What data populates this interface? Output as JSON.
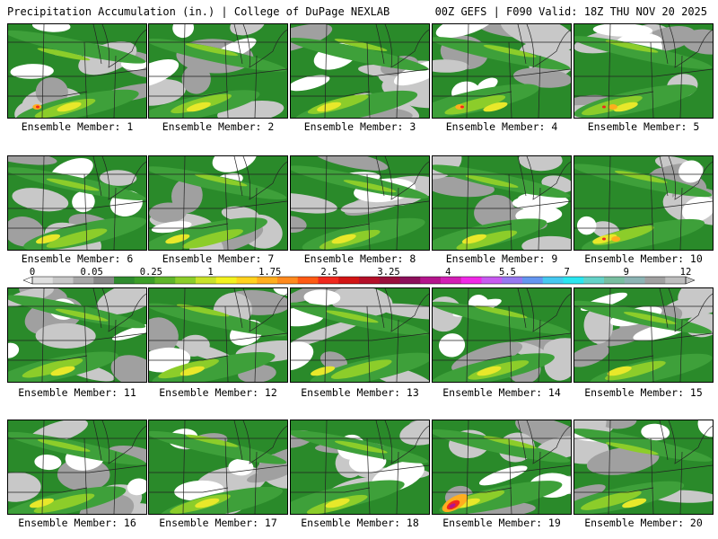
{
  "header": {
    "left": "Precipitation Accumulation (in.) | College of DuPage NEXLAB",
    "right": "00Z GEFS | F090 Valid: 18Z THU NOV 20 2025"
  },
  "panels": [
    {
      "label": "Ensemble Member: 1"
    },
    {
      "label": "Ensemble Member: 2"
    },
    {
      "label": "Ensemble Member: 3"
    },
    {
      "label": "Ensemble Member: 4"
    },
    {
      "label": "Ensemble Member: 5"
    },
    {
      "label": "Ensemble Member: 6"
    },
    {
      "label": "Ensemble Member: 7"
    },
    {
      "label": "Ensemble Member: 8"
    },
    {
      "label": "Ensemble Member: 9"
    },
    {
      "label": "Ensemble Member: 10"
    },
    {
      "label": "Ensemble Member: 11"
    },
    {
      "label": "Ensemble Member: 12"
    },
    {
      "label": "Ensemble Member: 13"
    },
    {
      "label": "Ensemble Member: 14"
    },
    {
      "label": "Ensemble Member: 15"
    },
    {
      "label": "Ensemble Member: 16"
    },
    {
      "label": "Ensemble Member: 17"
    },
    {
      "label": "Ensemble Member: 18"
    },
    {
      "label": "Ensemble Member: 19"
    },
    {
      "label": "Ensemble Member: 20"
    }
  ],
  "colorbar": {
    "labels": [
      "0",
      "0.05",
      "0.25",
      "1",
      "1.75",
      "2.5",
      "3.25",
      "4",
      "5.5",
      "7",
      "9",
      "12"
    ],
    "colors": [
      "#e0e0e0",
      "#c8c8c8",
      "#a8a8a8",
      "#888888",
      "#2e8b2e",
      "#3c9e28",
      "#5fb52a",
      "#8ccd2a",
      "#c9e22a",
      "#f2f21e",
      "#ffd21e",
      "#ffae1e",
      "#ff8a1e",
      "#ff5a14",
      "#f0281e",
      "#d21414",
      "#b40f28",
      "#9a0f3c",
      "#8c0f5a",
      "#b4148c",
      "#d21eb4",
      "#f028e6",
      "#c85af0",
      "#9678f0",
      "#6496f0",
      "#46c8f0",
      "#2ae6f0",
      "#64d2c8",
      "#78bea0",
      "#8cb4b4",
      "#a0a0a0",
      "#bebebe"
    ]
  },
  "map_colors": {
    "white": "#ffffff",
    "light_gray": "#c8c8c8",
    "gray": "#a0a0a0",
    "dark_green": "#2a8a2a",
    "green": "#3ea03a",
    "light_green": "#8ccd2a",
    "yellow": "#e8e82a",
    "orange": "#ffae1e",
    "red": "#f0281e",
    "magenta": "#b4148c"
  }
}
